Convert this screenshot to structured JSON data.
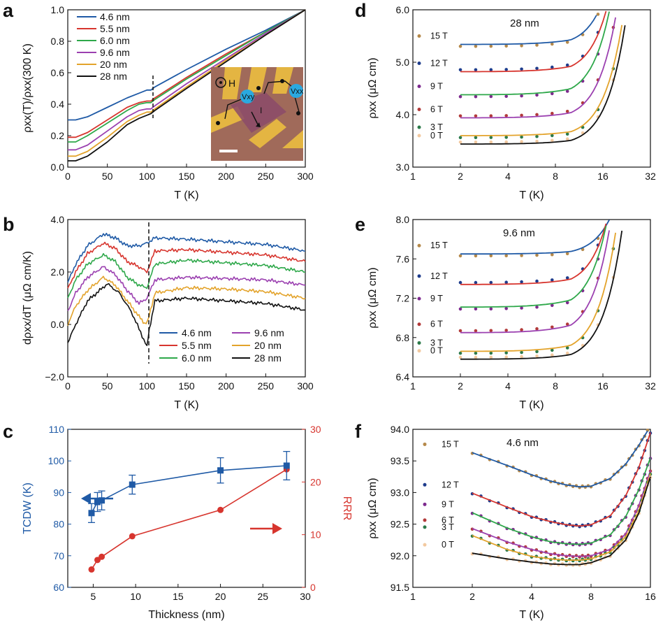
{
  "colors": {
    "c46": "#1f5aa6",
    "c55": "#d7352e",
    "c60": "#2ea84a",
    "c96": "#9b40b0",
    "c20": "#e3a32b",
    "c28": "#111111",
    "tcdw": "#1f5aa6",
    "rrr": "#d7352e",
    "f15": "#b5894a",
    "f12": "#1e3c8c",
    "f9": "#7d2a8e",
    "f6": "#b23a3a",
    "f3": "#2c7a4a",
    "f0": "#f2c9a0"
  },
  "chart_data": [
    {
      "panel": "a",
      "type": "line",
      "xlabel": "T (K)",
      "ylabel": "ρxx(T)/ρxx(300 K)",
      "xlim": [
        0,
        300
      ],
      "ylim": [
        0,
        1.0
      ],
      "xticks": [
        "0",
        "50",
        "100",
        "150",
        "200",
        "250",
        "300"
      ],
      "yticks": [
        "0.0",
        "0.2",
        "0.4",
        "0.6",
        "0.8",
        "1.0"
      ],
      "inset_labels": [
        "H",
        "Vxy",
        "Vxx",
        "I"
      ],
      "series": [
        {
          "name": "4.6 nm",
          "color_key": "c46",
          "x": [
            0,
            10,
            25,
            50,
            75,
            90,
            100,
            105,
            110,
            150,
            200,
            250,
            300
          ],
          "y": [
            0.3,
            0.3,
            0.32,
            0.38,
            0.44,
            0.47,
            0.49,
            0.49,
            0.51,
            0.62,
            0.75,
            0.87,
            1.0
          ]
        },
        {
          "name": "5.5 nm",
          "color_key": "c55",
          "x": [
            0,
            10,
            25,
            50,
            75,
            90,
            100,
            105,
            110,
            150,
            200,
            250,
            300
          ],
          "y": [
            0.19,
            0.19,
            0.22,
            0.3,
            0.38,
            0.41,
            0.42,
            0.42,
            0.44,
            0.57,
            0.72,
            0.86,
            1.0
          ]
        },
        {
          "name": "6.0 nm",
          "color_key": "c60",
          "x": [
            0,
            10,
            25,
            50,
            75,
            90,
            100,
            105,
            110,
            150,
            200,
            250,
            300
          ],
          "y": [
            0.16,
            0.16,
            0.2,
            0.28,
            0.36,
            0.4,
            0.41,
            0.41,
            0.43,
            0.56,
            0.71,
            0.86,
            1.0
          ]
        },
        {
          "name": "9.6 nm",
          "color_key": "c96",
          "x": [
            0,
            10,
            25,
            50,
            75,
            90,
            100,
            105,
            110,
            150,
            200,
            250,
            300
          ],
          "y": [
            0.11,
            0.11,
            0.14,
            0.23,
            0.32,
            0.36,
            0.37,
            0.37,
            0.39,
            0.53,
            0.69,
            0.85,
            1.0
          ]
        },
        {
          "name": "20 nm",
          "color_key": "c20",
          "x": [
            0,
            10,
            25,
            50,
            75,
            90,
            100,
            105,
            110,
            150,
            200,
            250,
            300
          ],
          "y": [
            0.07,
            0.07,
            0.1,
            0.19,
            0.29,
            0.33,
            0.35,
            0.35,
            0.37,
            0.51,
            0.68,
            0.84,
            1.0
          ]
        },
        {
          "name": "28 nm",
          "color_key": "c28",
          "x": [
            0,
            10,
            25,
            50,
            75,
            90,
            100,
            105,
            110,
            150,
            200,
            250,
            300
          ],
          "y": [
            0.04,
            0.04,
            0.07,
            0.16,
            0.27,
            0.31,
            0.33,
            0.34,
            0.36,
            0.5,
            0.67,
            0.84,
            1.0
          ]
        }
      ]
    },
    {
      "panel": "b",
      "type": "line",
      "xlabel": "T (K)",
      "ylabel": "dρxx/dT (μΩ cm/K)",
      "xlim": [
        0,
        300
      ],
      "ylim": [
        -2.0,
        4.0
      ],
      "xticks": [
        "0",
        "50",
        "100",
        "150",
        "200",
        "250",
        "300"
      ],
      "yticks": [
        "−2.0",
        "0.0",
        "2.0",
        "4.0"
      ],
      "series": [
        {
          "name": "4.6 nm",
          "color_key": "c46",
          "x": [
            0,
            10,
            25,
            45,
            60,
            75,
            90,
            100,
            110,
            150,
            200,
            250,
            300
          ],
          "y": [
            1.6,
            2.3,
            3.0,
            3.45,
            3.3,
            3.0,
            3.0,
            3.1,
            3.3,
            3.25,
            3.15,
            3.05,
            2.8
          ]
        },
        {
          "name": "5.5 nm",
          "color_key": "c55",
          "x": [
            0,
            10,
            25,
            45,
            60,
            75,
            90,
            100,
            110,
            150,
            200,
            250,
            300
          ],
          "y": [
            1.35,
            2.0,
            2.7,
            3.1,
            2.9,
            2.4,
            2.2,
            2.0,
            2.8,
            2.85,
            2.75,
            2.65,
            2.4
          ]
        },
        {
          "name": "6.0 nm",
          "color_key": "c60",
          "x": [
            0,
            10,
            25,
            45,
            60,
            75,
            90,
            100,
            110,
            150,
            200,
            250,
            300
          ],
          "y": [
            1.0,
            1.7,
            2.3,
            2.65,
            2.4,
            1.8,
            1.5,
            1.4,
            2.3,
            2.45,
            2.35,
            2.25,
            2.0
          ]
        },
        {
          "name": "9.6 nm",
          "color_key": "c96",
          "x": [
            0,
            10,
            25,
            45,
            60,
            75,
            90,
            100,
            110,
            150,
            200,
            250,
            300
          ],
          "y": [
            0.5,
            1.2,
            1.8,
            2.2,
            1.9,
            1.3,
            0.8,
            1.0,
            1.7,
            1.8,
            1.75,
            1.7,
            1.5
          ]
        },
        {
          "name": "20 nm",
          "color_key": "c20",
          "x": [
            0,
            10,
            25,
            45,
            60,
            75,
            90,
            97,
            101,
            110,
            150,
            200,
            250,
            300
          ],
          "y": [
            0.0,
            0.7,
            1.3,
            1.8,
            1.5,
            0.9,
            0.3,
            0.05,
            0.1,
            1.2,
            1.4,
            1.35,
            1.25,
            1.0
          ]
        },
        {
          "name": "28 nm",
          "color_key": "c28",
          "x": [
            0,
            10,
            25,
            50,
            65,
            80,
            92,
            100,
            103,
            110,
            150,
            200,
            250,
            300
          ],
          "y": [
            -0.7,
            0.0,
            0.9,
            1.55,
            1.2,
            0.5,
            -0.3,
            -0.85,
            -0.2,
            0.9,
            1.0,
            0.9,
            0.8,
            0.55
          ]
        }
      ],
      "marker_T": 102
    },
    {
      "panel": "c",
      "type": "scatter",
      "xlabel": "Thickness (nm)",
      "ylabel_left": "TCDW (K)",
      "ylabel_right": "RRR",
      "xlim": [
        2,
        30
      ],
      "ylim_left": [
        60,
        110
      ],
      "ylim_right": [
        0,
        30
      ],
      "xticks": [
        "5",
        "10",
        "15",
        "20",
        "25",
        "30"
      ],
      "yticks_left": [
        "60",
        "70",
        "80",
        "90",
        "100",
        "110"
      ],
      "yticks_right": [
        "0",
        "10",
        "20",
        "30"
      ],
      "series": [
        {
          "name": "TCDW",
          "color_key": "tcdw",
          "axis": "left",
          "x": [
            4.8,
            5.5,
            6.0,
            9.6,
            20,
            27.8
          ],
          "y": [
            83.5,
            87,
            87.5,
            92.5,
            97,
            98.5
          ],
          "err": [
            3,
            3,
            3,
            3,
            4,
            4.5
          ]
        },
        {
          "name": "RRR",
          "color_key": "rrr",
          "axis": "right",
          "x": [
            4.8,
            5.5,
            6.0,
            9.6,
            20,
            27.8
          ],
          "y": [
            3.4,
            5.2,
            5.8,
            9.7,
            14.7,
            22.4
          ]
        }
      ]
    },
    {
      "panel": "d",
      "type": "scatter+line",
      "title": "28 nm",
      "xlabel": "T (K)",
      "ylabel": "ρxx (μΩ cm)",
      "xscale": "log2",
      "xlim": [
        1,
        32
      ],
      "ylim": [
        3.0,
        6.0
      ],
      "xticks": [
        "1",
        "2",
        "4",
        "8",
        "16",
        "32"
      ],
      "yticks": [
        "3.0",
        "4.0",
        "5.0",
        "6.0"
      ],
      "fields": [
        {
          "label": "15 T",
          "color_key": "f15",
          "fit_color_key": "c46",
          "base": 5.34,
          "k": 0.012
        },
        {
          "label": "12 T",
          "color_key": "f12",
          "fit_color_key": "c55",
          "base": 4.82,
          "k": 0.014
        },
        {
          "label": "9 T",
          "color_key": "f9",
          "fit_color_key": "c60",
          "base": 4.38,
          "k": 0.016
        },
        {
          "label": "6 T",
          "color_key": "f6",
          "fit_color_key": "c96",
          "base": 3.94,
          "k": 0.0135
        },
        {
          "label": "3 T",
          "color_key": "f3",
          "fit_color_key": "c20",
          "base": 3.6,
          "k": 0.0105
        },
        {
          "label": "0 T",
          "color_key": "f0",
          "fit_color_key": "c28",
          "base": 3.44,
          "k": 0.0095
        }
      ]
    },
    {
      "panel": "e",
      "type": "scatter+line",
      "title": "9.6 nm",
      "xlabel": "T (K)",
      "ylabel": "ρxx (μΩ cm)",
      "xscale": "log2",
      "xlim": [
        1,
        32
      ],
      "ylim": [
        6.4,
        8.0
      ],
      "xticks": [
        "1",
        "2",
        "4",
        "8",
        "16",
        "32"
      ],
      "yticks": [
        "6.4",
        "6.8",
        "7.2",
        "7.6",
        "8.0"
      ],
      "fields": [
        {
          "label": "15 T",
          "color_key": "f15",
          "fit_color_key": "c46",
          "base": 7.65,
          "k": 0.0035
        },
        {
          "label": "12 T",
          "color_key": "f12",
          "fit_color_key": "c55",
          "base": 7.34,
          "k": 0.0075
        },
        {
          "label": "9 T",
          "color_key": "f9",
          "fit_color_key": "c60",
          "base": 7.11,
          "k": 0.01
        },
        {
          "label": "6 T",
          "color_key": "f6",
          "fit_color_key": "c96",
          "base": 6.85,
          "k": 0.0105
        },
        {
          "label": "3 T",
          "color_key": "f3",
          "fit_color_key": "c20",
          "base": 6.66,
          "k": 0.0085
        },
        {
          "label": "0 T",
          "color_key": "f0",
          "fit_color_key": "c28",
          "base": 6.58,
          "k": 0.0065
        }
      ]
    },
    {
      "panel": "f",
      "type": "scatter+line",
      "title": "4.6 nm",
      "xlabel": "T (K)",
      "ylabel": "ρxx (μΩ cm)",
      "xscale": "log2",
      "xlim": [
        1,
        16
      ],
      "ylim": [
        91.5,
        94.0
      ],
      "xticks": [
        "1",
        "2",
        "4",
        "8",
        "16"
      ],
      "yticks": [
        "91.5",
        "92.0",
        "92.5",
        "93.0",
        "93.5",
        "94.0"
      ],
      "fields": [
        {
          "label": "15 T",
          "color_key": "f15",
          "fit_color_key": "c46",
          "T": [
            2,
            3,
            4,
            5,
            6,
            7,
            8,
            10,
            12,
            14,
            16
          ],
          "y": [
            93.63,
            93.43,
            93.28,
            93.18,
            93.12,
            93.09,
            93.1,
            93.22,
            93.45,
            93.75,
            94.05
          ]
        },
        {
          "label": "12 T",
          "color_key": "f12",
          "fit_color_key": "c55",
          "T": [
            2,
            3,
            4,
            5,
            6,
            7,
            8,
            10,
            12,
            14,
            16
          ],
          "y": [
            92.99,
            92.77,
            92.62,
            92.54,
            92.49,
            92.47,
            92.49,
            92.63,
            92.95,
            93.4,
            93.95
          ]
        },
        {
          "label": "9 T",
          "color_key": "f9",
          "fit_color_key": "c60",
          "T": [
            2,
            3,
            4,
            5,
            6,
            7,
            8,
            10,
            12,
            14,
            16
          ],
          "y": [
            92.68,
            92.44,
            92.3,
            92.22,
            92.19,
            92.18,
            92.2,
            92.33,
            92.62,
            93.05,
            93.55
          ]
        },
        {
          "label": "6 T",
          "color_key": "f6",
          "fit_color_key": "c96",
          "T": [
            2,
            3,
            4,
            5,
            6,
            7,
            8,
            10,
            12,
            14,
            16
          ],
          "y": [
            92.43,
            92.22,
            92.1,
            92.03,
            92.0,
            91.99,
            92.0,
            92.1,
            92.35,
            92.8,
            93.35
          ]
        },
        {
          "label": "3 T",
          "color_key": "f3",
          "fit_color_key": "c20",
          "T": [
            2,
            3,
            4,
            5,
            6,
            7,
            8,
            10,
            12,
            14,
            16
          ],
          "y": [
            92.32,
            92.1,
            91.99,
            91.95,
            91.93,
            91.93,
            91.95,
            92.06,
            92.3,
            92.72,
            93.3
          ]
        },
        {
          "label": "0 T",
          "color_key": "f0",
          "fit_color_key": "c28",
          "T": [
            2,
            3,
            4,
            5,
            6,
            7,
            8,
            10,
            12,
            14,
            16
          ],
          "y": [
            92.04,
            91.95,
            91.9,
            91.87,
            91.86,
            91.86,
            91.89,
            92.0,
            92.25,
            92.68,
            93.25
          ]
        }
      ]
    }
  ]
}
